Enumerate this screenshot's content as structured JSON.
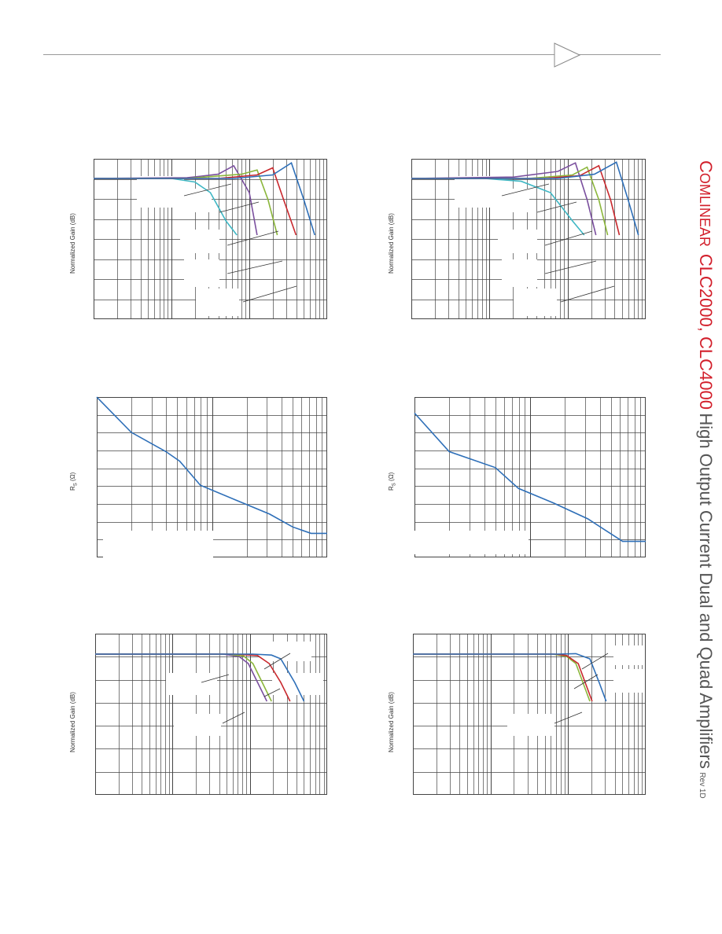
{
  "header": {
    "title_brand_initial": "C",
    "title_brand_rest": "OMLINEAR",
    "title_model": "CLC2000, CLC4000",
    "title_rest": "High Output Current Dual and Quad Amplifiers",
    "title_rev": "Rev 1D"
  },
  "charts": [
    {
      "id": "chart-top-left",
      "ylabel": "Normalized Gain (dB)",
      "unit": ""
    },
    {
      "id": "chart-top-right",
      "ylabel": "Normalized Gain (dB)",
      "unit": ""
    },
    {
      "id": "chart-mid-left",
      "ylabel_main": "R",
      "ylabel_sub": "S",
      "ylabel_unit": "(Ω)"
    },
    {
      "id": "chart-mid-right",
      "ylabel_main": "R",
      "ylabel_sub": "S",
      "ylabel_unit": "(Ω)"
    },
    {
      "id": "chart-bottom-left",
      "ylabel": "Normalized Gain (dB)"
    },
    {
      "id": "chart-bottom-right",
      "ylabel": "Normalized Gain (dB)"
    }
  ],
  "colors": {
    "blue": "#2e6fb8",
    "red": "#c8282d",
    "green": "#8bb63b",
    "purple": "#7a4f9e",
    "cyan": "#3fb7c4",
    "grid": "#444444",
    "brand_red": "#d21f2b"
  },
  "chart_data": [
    {
      "type": "line",
      "title": "",
      "ylabel": "Normalized Gain (dB)",
      "xlabel": "",
      "x_scale": "log",
      "series": [
        {
          "color": "#7a4f9e",
          "points": [
            [
              0.0,
              0
            ],
            [
              0.6,
              0.1
            ],
            [
              0.8,
              0.6
            ],
            [
              0.9,
              1.8
            ],
            [
              1.0,
              -2
            ],
            [
              1.05,
              -8
            ]
          ]
        },
        {
          "color": "#3fb7c4",
          "points": [
            [
              0.0,
              0
            ],
            [
              0.5,
              0
            ],
            [
              0.65,
              -0.5
            ],
            [
              0.75,
              -2
            ],
            [
              0.85,
              -6
            ],
            [
              0.92,
              -8
            ]
          ]
        },
        {
          "color": "#8bb63b",
          "points": [
            [
              0.0,
              0
            ],
            [
              0.6,
              0
            ],
            [
              0.95,
              0.6
            ],
            [
              1.05,
              1.2
            ],
            [
              1.12,
              -3
            ],
            [
              1.18,
              -8
            ]
          ]
        },
        {
          "color": "#c8282d",
          "points": [
            [
              0.0,
              0
            ],
            [
              0.8,
              0
            ],
            [
              1.05,
              0.5
            ],
            [
              1.15,
              1.5
            ],
            [
              1.22,
              -3
            ],
            [
              1.3,
              -8
            ]
          ]
        },
        {
          "color": "#2e6fb8",
          "points": [
            [
              0.0,
              0
            ],
            [
              0.9,
              0
            ],
            [
              1.15,
              0.5
            ],
            [
              1.27,
              2.2
            ],
            [
              1.35,
              -3
            ],
            [
              1.42,
              -8
            ]
          ]
        }
      ]
    },
    {
      "type": "line",
      "title": "",
      "ylabel": "Normalized Gain (dB)",
      "xlabel": "",
      "x_scale": "log",
      "series": [
        {
          "color": "#3fb7c4",
          "points": [
            [
              0.0,
              0
            ],
            [
              0.5,
              0
            ],
            [
              0.75,
              -0.4
            ],
            [
              0.95,
              -2
            ],
            [
              1.1,
              -6
            ],
            [
              1.18,
              -8
            ]
          ]
        },
        {
          "color": "#7a4f9e",
          "points": [
            [
              0.0,
              0
            ],
            [
              0.7,
              0.2
            ],
            [
              1.0,
              1.0
            ],
            [
              1.12,
              2.2
            ],
            [
              1.2,
              -3
            ],
            [
              1.26,
              -8
            ]
          ]
        },
        {
          "color": "#8bb63b",
          "points": [
            [
              0.0,
              0
            ],
            [
              0.8,
              0
            ],
            [
              1.1,
              0.5
            ],
            [
              1.2,
              1.6
            ],
            [
              1.28,
              -3
            ],
            [
              1.34,
              -8
            ]
          ]
        },
        {
          "color": "#c8282d",
          "points": [
            [
              0.0,
              0
            ],
            [
              0.9,
              0
            ],
            [
              1.15,
              0.4
            ],
            [
              1.28,
              1.8
            ],
            [
              1.36,
              -3
            ],
            [
              1.42,
              -8
            ]
          ]
        },
        {
          "color": "#2e6fb8",
          "points": [
            [
              0.0,
              0
            ],
            [
              1.0,
              0
            ],
            [
              1.25,
              0.6
            ],
            [
              1.4,
              2.3
            ],
            [
              1.48,
              -3
            ],
            [
              1.55,
              -8
            ]
          ]
        }
      ]
    },
    {
      "type": "line",
      "title": "",
      "ylabel": "RS (Ω)",
      "xlabel": "",
      "series": [
        {
          "color": "#2e6fb8",
          "points": [
            [
              0.0,
              1.0
            ],
            [
              0.15,
              0.78
            ],
            [
              0.3,
              0.66
            ],
            [
              0.36,
              0.6
            ],
            [
              0.45,
              0.45
            ],
            [
              0.6,
              0.36
            ],
            [
              0.75,
              0.27
            ],
            [
              0.85,
              0.19
            ],
            [
              0.93,
              0.15
            ],
            [
              1.0,
              0.15
            ]
          ]
        }
      ]
    },
    {
      "type": "line",
      "title": "",
      "ylabel": "RS (Ω)",
      "xlabel": "",
      "series": [
        {
          "color": "#2e6fb8",
          "points": [
            [
              0.0,
              0.9
            ],
            [
              0.15,
              0.66
            ],
            [
              0.35,
              0.56
            ],
            [
              0.45,
              0.43
            ],
            [
              0.6,
              0.34
            ],
            [
              0.75,
              0.24
            ],
            [
              0.9,
              0.1
            ],
            [
              1.0,
              0.1
            ]
          ]
        }
      ]
    },
    {
      "type": "line",
      "title": "",
      "ylabel": "Normalized Gain (dB)",
      "xlabel": "",
      "series": [
        {
          "color": "#7a4f9e",
          "points": [
            [
              0.0,
              0
            ],
            [
              0.55,
              0
            ],
            [
              0.62,
              -0.5
            ],
            [
              0.66,
              -2
            ],
            [
              0.7,
              -6
            ],
            [
              0.74,
              -10
            ]
          ]
        },
        {
          "color": "#8bb63b",
          "points": [
            [
              0.0,
              0
            ],
            [
              0.57,
              0
            ],
            [
              0.64,
              -0.4
            ],
            [
              0.68,
              -2
            ],
            [
              0.72,
              -6
            ],
            [
              0.76,
              -10
            ]
          ]
        },
        {
          "color": "#c8282d",
          "points": [
            [
              0.0,
              0
            ],
            [
              0.6,
              0
            ],
            [
              0.7,
              -0.3
            ],
            [
              0.75,
              -2
            ],
            [
              0.8,
              -6
            ],
            [
              0.84,
              -10
            ]
          ]
        },
        {
          "color": "#2e6fb8",
          "points": [
            [
              0.0,
              0
            ],
            [
              0.68,
              0
            ],
            [
              0.76,
              -0.2
            ],
            [
              0.8,
              -1
            ],
            [
              0.86,
              -6
            ],
            [
              0.9,
              -10
            ]
          ]
        }
      ]
    },
    {
      "type": "line",
      "title": "",
      "ylabel": "Normalized Gain (dB)",
      "xlabel": "",
      "series": [
        {
          "color": "#8bb63b",
          "points": [
            [
              0.0,
              0
            ],
            [
              0.6,
              0
            ],
            [
              0.66,
              -0.5
            ],
            [
              0.7,
              -2
            ],
            [
              0.73,
              -6
            ],
            [
              0.76,
              -10
            ]
          ]
        },
        {
          "color": "#c8282d",
          "points": [
            [
              0.0,
              0
            ],
            [
              0.61,
              0
            ],
            [
              0.66,
              -0.3
            ],
            [
              0.71,
              -2
            ],
            [
              0.74,
              -6
            ],
            [
              0.77,
              -10
            ]
          ]
        },
        {
          "color": "#2e6fb8",
          "points": [
            [
              0.0,
              0
            ],
            [
              0.62,
              0
            ],
            [
              0.7,
              0.1
            ],
            [
              0.76,
              -1
            ],
            [
              0.8,
              -6
            ],
            [
              0.83,
              -10
            ]
          ]
        }
      ]
    }
  ]
}
